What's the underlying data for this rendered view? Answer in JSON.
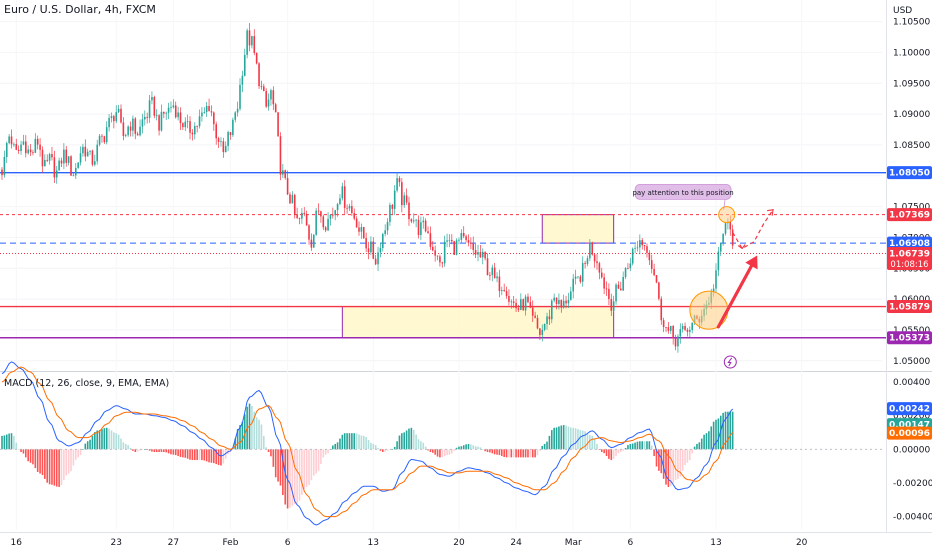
{
  "chart_data": {
    "type": "candlestick",
    "symbol_title": "Euro / U.S. Dollar, 4h, FXCM",
    "currency_label": "USD",
    "price_axis": {
      "range": [
        1.0485,
        1.1085
      ],
      "ticks": [
        "1.10500",
        "1.10000",
        "1.09500",
        "1.09000",
        "1.08500",
        "1.08000",
        "1.07500",
        "1.07000",
        "1.06500",
        "1.06000",
        "1.05500",
        "1.05000"
      ]
    },
    "price_tags": [
      {
        "label": "1.08050",
        "value": 1.0805,
        "color": "#2962ff"
      },
      {
        "label": "1.07369",
        "value": 1.07369,
        "color": "#f23645"
      },
      {
        "label": "1.06908",
        "value": 1.06908,
        "color": "#2962ff"
      },
      {
        "label": "1.06739",
        "value": 1.06739,
        "color": "#f23645",
        "sub": "01:08:16"
      },
      {
        "label": "1.05879",
        "value": 1.05879,
        "color": "#f23645"
      },
      {
        "label": "1.05373",
        "value": 1.05373,
        "color": "#9c27b0"
      }
    ],
    "horizontal_lines": [
      {
        "value": 1.0805,
        "color": "#2962ff",
        "style": "solid"
      },
      {
        "value": 1.07369,
        "color": "#f23645",
        "style": "dashed"
      },
      {
        "value": 1.06908,
        "color": "#2962ff",
        "style": "dashed"
      },
      {
        "value": 1.06739,
        "color": "#f23645",
        "style": "dotted"
      },
      {
        "value": 1.05879,
        "color": "#f23645",
        "style": "solid"
      },
      {
        "value": 1.05373,
        "color": "#9c27b0",
        "style": "solid"
      }
    ],
    "zones": [
      {
        "from_bar": 143,
        "to_bar": 257,
        "top": 1.05879,
        "bottom": 1.05373,
        "color": "#9c27b0"
      },
      {
        "from_bar": 227,
        "to_bar": 257,
        "top": 1.07369,
        "bottom": 1.06908,
        "color": "#9c27b0"
      }
    ],
    "annotation": "pay attention to this position",
    "time_labels": [
      {
        "label": "16",
        "bar": 6
      },
      {
        "label": "23",
        "bar": 48
      },
      {
        "label": "27",
        "bar": 72
      },
      {
        "label": "Feb",
        "bar": 96
      },
      {
        "label": "6",
        "bar": 120
      },
      {
        "label": "13",
        "bar": 156
      },
      {
        "label": "20",
        "bar": 192
      },
      {
        "label": "24",
        "bar": 216
      },
      {
        "label": "Mar",
        "bar": 240
      },
      {
        "label": "6",
        "bar": 264
      },
      {
        "label": "13",
        "bar": 300
      },
      {
        "label": "20",
        "bar": 336
      }
    ],
    "price_path": [
      [
        0,
        1.081
      ],
      [
        3,
        1.0865
      ],
      [
        6,
        1.0835
      ],
      [
        9,
        1.0855
      ],
      [
        12,
        1.0835
      ],
      [
        15,
        1.0855
      ],
      [
        18,
        1.0812
      ],
      [
        20,
        1.0825
      ],
      [
        23,
        1.0805
      ],
      [
        26,
        1.0835
      ],
      [
        30,
        1.0805
      ],
      [
        34,
        1.0845
      ],
      [
        38,
        1.0825
      ],
      [
        42,
        1.086
      ],
      [
        45,
        1.0885
      ],
      [
        48,
        1.0905
      ],
      [
        51,
        1.0865
      ],
      [
        54,
        1.0885
      ],
      [
        57,
        1.087
      ],
      [
        60,
        1.0895
      ],
      [
        63,
        1.0915
      ],
      [
        66,
        1.0885
      ],
      [
        69,
        1.0905
      ],
      [
        72,
        1.0915
      ],
      [
        75,
        1.089
      ],
      [
        78,
        1.0875
      ],
      [
        81,
        1.088
      ],
      [
        84,
        1.0895
      ],
      [
        87,
        1.0915
      ],
      [
        90,
        1.087
      ],
      [
        93,
        1.0835
      ],
      [
        96,
        1.087
      ],
      [
        99,
        1.0915
      ],
      [
        101,
        1.0975
      ],
      [
        103,
        1.1025
      ],
      [
        105,
        1.1015
      ],
      [
        107,
        1.0975
      ],
      [
        109,
        1.094
      ],
      [
        111,
        1.091
      ],
      [
        113,
        1.0935
      ],
      [
        115,
        1.089
      ],
      [
        117,
        1.0815
      ],
      [
        119,
        1.0785
      ],
      [
        121,
        1.0765
      ],
      [
        124,
        1.0725
      ],
      [
        127,
        1.0735
      ],
      [
        130,
        1.0695
      ],
      [
        133,
        1.0745
      ],
      [
        136,
        1.0725
      ],
      [
        139,
        1.074
      ],
      [
        142,
        1.0775
      ],
      [
        145,
        1.0755
      ],
      [
        148,
        1.0735
      ],
      [
        151,
        1.0705
      ],
      [
        154,
        1.0685
      ],
      [
        157,
        1.0665
      ],
      [
        160,
        1.0705
      ],
      [
        163,
        1.0745
      ],
      [
        166,
        1.0785
      ],
      [
        169,
        1.0755
      ],
      [
        172,
        1.0735
      ],
      [
        175,
        1.0715
      ],
      [
        178,
        1.0715
      ],
      [
        181,
        1.0685
      ],
      [
        184,
        1.0655
      ],
      [
        187,
        1.0695
      ],
      [
        190,
        1.0685
      ],
      [
        193,
        1.0695
      ],
      [
        196,
        1.0685
      ],
      [
        199,
        1.0675
      ],
      [
        202,
        1.0665
      ],
      [
        205,
        1.0645
      ],
      [
        208,
        1.0625
      ],
      [
        211,
        1.0625
      ],
      [
        214,
        1.0595
      ],
      [
        217,
        1.0585
      ],
      [
        220,
        1.0595
      ],
      [
        223,
        1.0565
      ],
      [
        226,
        1.0545
      ],
      [
        229,
        1.0565
      ],
      [
        232,
        1.0605
      ],
      [
        235,
        1.0585
      ],
      [
        238,
        1.0605
      ],
      [
        241,
        1.0625
      ],
      [
        244,
        1.0645
      ],
      [
        247,
        1.0685
      ],
      [
        250,
        1.0665
      ],
      [
        253,
        1.0625
      ],
      [
        256,
        1.0595
      ],
      [
        259,
        1.0615
      ],
      [
        262,
        1.0645
      ],
      [
        265,
        1.0675
      ],
      [
        268,
        1.0695
      ],
      [
        271,
        1.0685
      ],
      [
        274,
        1.0645
      ],
      [
        277,
        1.0575
      ],
      [
        280,
        1.0545
      ],
      [
        283,
        1.0535
      ],
      [
        286,
        1.0545
      ],
      [
        289,
        1.0555
      ],
      [
        292,
        1.0565
      ],
      [
        295,
        1.0585
      ],
      [
        298,
        1.0605
      ],
      [
        300,
        1.0645
      ],
      [
        302,
        1.0685
      ],
      [
        304,
        1.0725
      ],
      [
        306,
        1.0708
      ],
      [
        307,
        1.0698
      ]
    ],
    "macd": {
      "title": "MACD (12, 26, close, 9, EMA, EMA)",
      "range": [
        -0.0048,
        0.0046
      ],
      "ticks": [
        "0.00400",
        "0.00200",
        "0.00000",
        "-0.00200",
        "-0.00400"
      ],
      "tags": [
        {
          "label": "0.00242",
          "value": 0.00242,
          "color": "#2962ff"
        },
        {
          "label": "0.00147",
          "value": 0.00147,
          "color": "#26a69a"
        },
        {
          "label": "0.00096",
          "value": 0.00096,
          "color": "#ff6d00"
        }
      ],
      "macd_path": [
        [
          0,
          0.0045
        ],
        [
          4,
          0.0052
        ],
        [
          8,
          0.0048
        ],
        [
          12,
          0.0041
        ],
        [
          16,
          0.003
        ],
        [
          20,
          0.0016
        ],
        [
          24,
          0.0005
        ],
        [
          28,
          0.0002
        ],
        [
          32,
          0.0004
        ],
        [
          36,
          0.001
        ],
        [
          40,
          0.0017
        ],
        [
          44,
          0.0023
        ],
        [
          48,
          0.0026
        ],
        [
          52,
          0.0024
        ],
        [
          56,
          0.0021
        ],
        [
          60,
          0.0021
        ],
        [
          64,
          0.002
        ],
        [
          68,
          0.0019
        ],
        [
          72,
          0.0017
        ],
        [
          76,
          0.0014
        ],
        [
          80,
          0.001
        ],
        [
          84,
          0.0006
        ],
        [
          88,
          0.0001
        ],
        [
          92,
          -0.0004
        ],
        [
          96,
          -0.0001
        ],
        [
          100,
          0.0013
        ],
        [
          104,
          0.0031
        ],
        [
          108,
          0.0035
        ],
        [
          112,
          0.0025
        ],
        [
          116,
          0.0006
        ],
        [
          120,
          -0.0018
        ],
        [
          124,
          -0.0033
        ],
        [
          128,
          -0.0041
        ],
        [
          132,
          -0.0045
        ],
        [
          136,
          -0.0042
        ],
        [
          140,
          -0.0038
        ],
        [
          144,
          -0.0031
        ],
        [
          148,
          -0.0026
        ],
        [
          152,
          -0.0022
        ],
        [
          156,
          -0.0022
        ],
        [
          160,
          -0.0025
        ],
        [
          164,
          -0.0024
        ],
        [
          168,
          -0.0014
        ],
        [
          172,
          -0.0006
        ],
        [
          176,
          -0.0007
        ],
        [
          180,
          -0.0011
        ],
        [
          184,
          -0.0015
        ],
        [
          188,
          -0.0016
        ],
        [
          192,
          -0.0013
        ],
        [
          196,
          -0.0011
        ],
        [
          200,
          -0.0012
        ],
        [
          204,
          -0.0014
        ],
        [
          208,
          -0.0017
        ],
        [
          212,
          -0.002
        ],
        [
          216,
          -0.0023
        ],
        [
          220,
          -0.0025
        ],
        [
          224,
          -0.0027
        ],
        [
          228,
          -0.0022
        ],
        [
          232,
          -0.0012
        ],
        [
          236,
          -0.0004
        ],
        [
          240,
          0.0003
        ],
        [
          244,
          0.0008
        ],
        [
          248,
          0.0011
        ],
        [
          252,
          0.0006
        ],
        [
          256,
          0.0001
        ],
        [
          260,
          0.0003
        ],
        [
          264,
          0.0007
        ],
        [
          268,
          0.001
        ],
        [
          272,
          0.0012
        ],
        [
          276,
          -0.0003
        ],
        [
          280,
          -0.0018
        ],
        [
          284,
          -0.0024
        ],
        [
          288,
          -0.0023
        ],
        [
          292,
          -0.0017
        ],
        [
          296,
          -0.0009
        ],
        [
          300,
          0.0004
        ],
        [
          304,
          0.0018
        ],
        [
          307,
          0.0024
        ]
      ],
      "signal_path": [
        [
          0,
          0.004
        ],
        [
          4,
          0.0046
        ],
        [
          8,
          0.0049
        ],
        [
          12,
          0.0046
        ],
        [
          16,
          0.0039
        ],
        [
          20,
          0.0029
        ],
        [
          24,
          0.0019
        ],
        [
          28,
          0.0011
        ],
        [
          32,
          0.0007
        ],
        [
          36,
          0.0007
        ],
        [
          40,
          0.001
        ],
        [
          44,
          0.0015
        ],
        [
          48,
          0.002
        ],
        [
          52,
          0.0022
        ],
        [
          56,
          0.0022
        ],
        [
          60,
          0.0021
        ],
        [
          64,
          0.0021
        ],
        [
          68,
          0.002
        ],
        [
          72,
          0.0019
        ],
        [
          76,
          0.0017
        ],
        [
          80,
          0.0014
        ],
        [
          84,
          0.001
        ],
        [
          88,
          0.0006
        ],
        [
          92,
          0.0002
        ],
        [
          96,
          0.0
        ],
        [
          100,
          0.0004
        ],
        [
          104,
          0.0014
        ],
        [
          108,
          0.0024
        ],
        [
          112,
          0.0026
        ],
        [
          116,
          0.0018
        ],
        [
          120,
          0.0004
        ],
        [
          124,
          -0.0013
        ],
        [
          128,
          -0.0027
        ],
        [
          132,
          -0.0036
        ],
        [
          136,
          -0.004
        ],
        [
          140,
          -0.004
        ],
        [
          144,
          -0.0037
        ],
        [
          148,
          -0.0032
        ],
        [
          152,
          -0.0027
        ],
        [
          156,
          -0.0024
        ],
        [
          160,
          -0.0024
        ],
        [
          164,
          -0.0024
        ],
        [
          168,
          -0.002
        ],
        [
          172,
          -0.0014
        ],
        [
          176,
          -0.001
        ],
        [
          180,
          -0.001
        ],
        [
          184,
          -0.0012
        ],
        [
          188,
          -0.0014
        ],
        [
          192,
          -0.0014
        ],
        [
          196,
          -0.0013
        ],
        [
          200,
          -0.0013
        ],
        [
          204,
          -0.0013
        ],
        [
          208,
          -0.0015
        ],
        [
          212,
          -0.0017
        ],
        [
          216,
          -0.002
        ],
        [
          220,
          -0.0022
        ],
        [
          224,
          -0.0024
        ],
        [
          228,
          -0.0024
        ],
        [
          232,
          -0.002
        ],
        [
          236,
          -0.0013
        ],
        [
          240,
          -0.0005
        ],
        [
          244,
          0.0001
        ],
        [
          248,
          0.0006
        ],
        [
          252,
          0.0007
        ],
        [
          256,
          0.0005
        ],
        [
          260,
          0.0004
        ],
        [
          264,
          0.0005
        ],
        [
          268,
          0.0007
        ],
        [
          272,
          0.0009
        ],
        [
          276,
          0.0005
        ],
        [
          280,
          -0.0004
        ],
        [
          284,
          -0.0013
        ],
        [
          288,
          -0.0018
        ],
        [
          292,
          -0.0019
        ],
        [
          296,
          -0.0015
        ],
        [
          300,
          -0.0007
        ],
        [
          304,
          0.0004
        ],
        [
          307,
          0.001
        ]
      ]
    },
    "colors": {
      "up": "#26a69a",
      "down": "#f23645",
      "macd_line": "#2962ff",
      "signal_line": "#ff6d00",
      "hist_up_strong": "#26a69a",
      "hist_up_weak": "#b2dfdb",
      "hist_down_strong": "#ff5252",
      "hist_down_weak": "#ffcdd2",
      "zone_fill": "#fff7c9",
      "callout_fill": "#e1bee7",
      "arrow": "#f23645"
    }
  }
}
